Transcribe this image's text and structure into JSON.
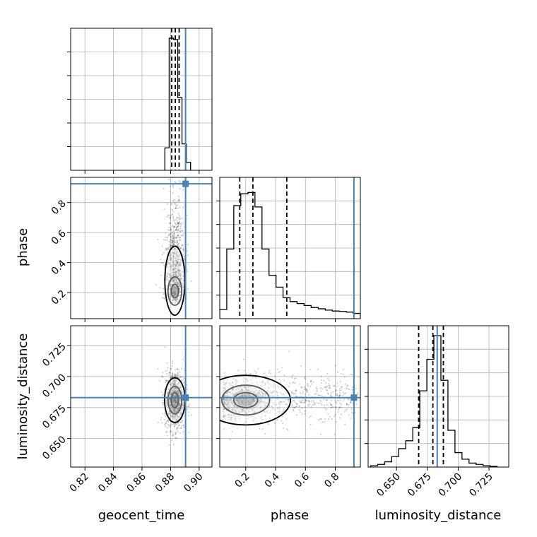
{
  "chart_data": {
    "type": "corner",
    "parameters": [
      "geocent_time",
      "phase",
      "luminosity_distance"
    ],
    "axis_labels": {
      "geocent_time": "geocent_time",
      "phase": "phase",
      "luminosity_distance": "luminosity_distance"
    },
    "ranges": {
      "geocent_time": [
        0.81,
        0.909
      ],
      "phase": [
        0.026,
        0.968
      ],
      "luminosity_distance": [
        0.627,
        0.741
      ]
    },
    "ticks": {
      "geocent_time": [
        {
          "v": 0.82,
          "label": "0.82"
        },
        {
          "v": 0.84,
          "label": "0.84"
        },
        {
          "v": 0.86,
          "label": "0.86"
        },
        {
          "v": 0.88,
          "label": "0.88"
        },
        {
          "v": 0.9,
          "label": "0.90"
        }
      ],
      "phase": [
        {
          "v": 0.2,
          "label": "0.2"
        },
        {
          "v": 0.4,
          "label": "0.4"
        },
        {
          "v": 0.6,
          "label": "0.6"
        },
        {
          "v": 0.8,
          "label": "0.8"
        }
      ],
      "luminosity_distance": [
        {
          "v": 0.65,
          "label": "0.650"
        },
        {
          "v": 0.675,
          "label": "0.675"
        },
        {
          "v": 0.7,
          "label": "0.700"
        },
        {
          "v": 0.725,
          "label": "0.725"
        }
      ]
    },
    "truths": {
      "geocent_time": 0.8905,
      "phase": 0.925,
      "luminosity_distance": 0.683
    },
    "quantiles": {
      "geocent_time": [
        0.8808,
        0.8833,
        0.886
      ],
      "phase": [
        0.16,
        0.248,
        0.475
      ],
      "luminosity_distance": [
        0.668,
        0.6795,
        0.688
      ]
    },
    "histograms": {
      "geocent_time": {
        "edges": [
          0.876,
          0.879,
          0.882,
          0.885,
          0.888,
          0.891,
          0.894
        ],
        "counts": [
          0.17,
          1.0,
          0.99,
          0.55,
          0.2,
          0.06
        ]
      },
      "phase": {
        "edges": [
          0.026,
          0.073,
          0.12,
          0.167,
          0.215,
          0.262,
          0.309,
          0.356,
          0.403,
          0.45,
          0.497,
          0.544,
          0.591,
          0.638,
          0.686,
          0.733,
          0.78,
          0.827,
          0.874,
          0.921,
          0.968
        ],
        "counts": [
          0.07,
          0.53,
          0.86,
          0.95,
          0.96,
          0.85,
          0.53,
          0.33,
          0.24,
          0.16,
          0.13,
          0.115,
          0.1,
          0.085,
          0.075,
          0.065,
          0.058,
          0.055,
          0.05,
          0.04
        ]
      },
      "luminosity_distance": {
        "edges": [
          0.629,
          0.6347,
          0.6404,
          0.6461,
          0.6518,
          0.6575,
          0.6632,
          0.6689,
          0.6746,
          0.6803,
          0.686,
          0.6917,
          0.6974,
          0.7031,
          0.7088,
          0.7145,
          0.7202,
          0.7259,
          0.7316
        ],
        "counts": [
          0.01,
          0.02,
          0.04,
          0.08,
          0.14,
          0.2,
          0.3,
          0.58,
          0.82,
          1.0,
          0.66,
          0.28,
          0.11,
          0.06,
          0.03,
          0.02,
          0.01,
          0.005
        ]
      }
    },
    "contours": {
      "phase_vs_geocent_time": {
        "center": [
          0.883,
          0.21
        ],
        "levels": [
          {
            "rx": 0.0025,
            "ry": 0.045
          },
          {
            "rx": 0.0048,
            "ry": 0.095
          },
          {
            "rx": 0.007,
            "ry": 0.23,
            "shift": 0.2
          }
        ]
      },
      "luminosity_distance_vs_geocent_time": {
        "center": [
          0.883,
          0.681
        ],
        "levels": [
          {
            "rx": 0.0025,
            "ry": 0.006
          },
          {
            "rx": 0.0048,
            "ry": 0.011
          },
          {
            "rx": 0.0072,
            "ry": 0.018
          }
        ]
      },
      "luminosity_distance_vs_phase": {
        "center": [
          0.2,
          0.681
        ],
        "levels": [
          {
            "rx": 0.08,
            "ry": 0.006
          },
          {
            "rx": 0.16,
            "ry": 0.012
          },
          {
            "rx": 0.3,
            "ry": 0.02
          }
        ]
      }
    },
    "colors": {
      "truth": "#4682b4",
      "hist": "#000000",
      "quantile": "#000000",
      "grid": "#b0b0b0",
      "density": "#000000"
    }
  }
}
